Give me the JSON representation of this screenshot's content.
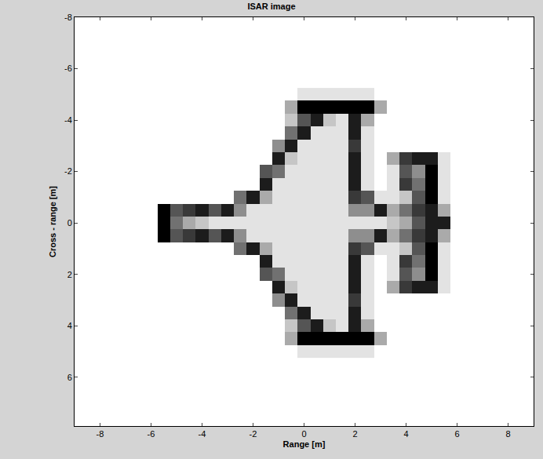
{
  "chart_data": {
    "type": "heatmap",
    "title": "ISAR image",
    "x_label": "Range [m]",
    "y_label": "Cross - range [m]",
    "xlim": [
      -9,
      9
    ],
    "xticks": [
      -8,
      -6,
      -4,
      -2,
      0,
      2,
      4,
      6,
      8
    ],
    "ylim": [
      -8,
      7.9
    ],
    "yticks": [
      -8,
      -6,
      -4,
      -2,
      0,
      2,
      4,
      6
    ],
    "x": [
      -6,
      -5.5,
      -5,
      -4.5,
      -4,
      -3.5,
      -3,
      -2.5,
      -2,
      -1.5,
      -1,
      -0.5,
      0,
      0.5,
      1,
      1.5,
      2,
      2.5,
      3,
      3.5,
      4,
      4.5,
      5,
      5.5,
      6
    ],
    "y": [
      -5,
      -4.5,
      -4,
      -3.5,
      -3,
      -2.5,
      -2,
      -1.5,
      -1,
      -0.5,
      0,
      0.5,
      1,
      1.5,
      2,
      2.5,
      3,
      3.5,
      4,
      4.5,
      5
    ],
    "zlim": [
      0,
      9
    ],
    "cells": [
      [
        0,
        0,
        0,
        0,
        0,
        0,
        0,
        0,
        0,
        0,
        0,
        0,
        1,
        1,
        1,
        1,
        1,
        1,
        0,
        0,
        0,
        0,
        0,
        0,
        0
      ],
      [
        0,
        0,
        0,
        0,
        0,
        0,
        0,
        0,
        0,
        0,
        0,
        3,
        9,
        9,
        9,
        9,
        9,
        9,
        3,
        0,
        0,
        0,
        0,
        0,
        0
      ],
      [
        0,
        0,
        0,
        0,
        0,
        0,
        0,
        0,
        0,
        0,
        0,
        2,
        6,
        8,
        2,
        1,
        8,
        3,
        0,
        0,
        0,
        0,
        0,
        0,
        0
      ],
      [
        0,
        0,
        0,
        0,
        0,
        0,
        0,
        0,
        0,
        0,
        0,
        5,
        8,
        1,
        1,
        1,
        8,
        1,
        0,
        0,
        0,
        0,
        0,
        0,
        0
      ],
      [
        0,
        0,
        0,
        0,
        0,
        0,
        0,
        0,
        0,
        0,
        4,
        8,
        1,
        1,
        1,
        1,
        7,
        1,
        0,
        0,
        0,
        0,
        0,
        0,
        0
      ],
      [
        0,
        0,
        0,
        0,
        0,
        0,
        0,
        0,
        0,
        0,
        8,
        2,
        1,
        1,
        1,
        1,
        8,
        1,
        0,
        3,
        7,
        8,
        8,
        1,
        0
      ],
      [
        0,
        0,
        0,
        0,
        0,
        0,
        0,
        0,
        0,
        6,
        5,
        1,
        1,
        1,
        1,
        1,
        8,
        1,
        0,
        1,
        6,
        4,
        9,
        1,
        0
      ],
      [
        0,
        0,
        0,
        0,
        0,
        0,
        0,
        0,
        0,
        8,
        1,
        1,
        1,
        1,
        1,
        1,
        8,
        1,
        0,
        1,
        7,
        5,
        9,
        1,
        0
      ],
      [
        0,
        0,
        0,
        0,
        0,
        0,
        0,
        5,
        8,
        3,
        1,
        1,
        1,
        1,
        1,
        1,
        7,
        6,
        1,
        1,
        2,
        6,
        9,
        1,
        0
      ],
      [
        0,
        9,
        6,
        7,
        8,
        6,
        8,
        4,
        1,
        1,
        1,
        1,
        1,
        1,
        1,
        1,
        4,
        4,
        8,
        3,
        5,
        7,
        8,
        3,
        0
      ],
      [
        0,
        9,
        5,
        3,
        2,
        1,
        1,
        1,
        1,
        1,
        1,
        1,
        1,
        1,
        1,
        1,
        1,
        1,
        1,
        2,
        3,
        6,
        8,
        8,
        0
      ],
      [
        0,
        9,
        6,
        7,
        8,
        6,
        8,
        4,
        1,
        1,
        1,
        1,
        1,
        1,
        1,
        1,
        4,
        4,
        8,
        3,
        5,
        7,
        8,
        3,
        0
      ],
      [
        0,
        0,
        0,
        0,
        0,
        0,
        0,
        5,
        8,
        3,
        1,
        1,
        1,
        1,
        1,
        1,
        7,
        6,
        1,
        1,
        2,
        6,
        9,
        1,
        0
      ],
      [
        0,
        0,
        0,
        0,
        0,
        0,
        0,
        0,
        0,
        8,
        1,
        1,
        1,
        1,
        1,
        1,
        8,
        1,
        0,
        1,
        7,
        5,
        9,
        1,
        0
      ],
      [
        0,
        0,
        0,
        0,
        0,
        0,
        0,
        0,
        0,
        6,
        5,
        1,
        1,
        1,
        1,
        1,
        8,
        1,
        0,
        1,
        6,
        4,
        9,
        1,
        0
      ],
      [
        0,
        0,
        0,
        0,
        0,
        0,
        0,
        0,
        0,
        0,
        8,
        2,
        1,
        1,
        1,
        1,
        8,
        1,
        0,
        3,
        7,
        8,
        8,
        1,
        0
      ],
      [
        0,
        0,
        0,
        0,
        0,
        0,
        0,
        0,
        0,
        0,
        4,
        8,
        1,
        1,
        1,
        1,
        7,
        1,
        0,
        0,
        0,
        0,
        0,
        0,
        0
      ],
      [
        0,
        0,
        0,
        0,
        0,
        0,
        0,
        0,
        0,
        0,
        0,
        5,
        8,
        1,
        1,
        1,
        8,
        1,
        0,
        0,
        0,
        0,
        0,
        0,
        0
      ],
      [
        0,
        0,
        0,
        0,
        0,
        0,
        0,
        0,
        0,
        0,
        0,
        2,
        6,
        8,
        2,
        1,
        8,
        3,
        0,
        0,
        0,
        0,
        0,
        0,
        0
      ],
      [
        0,
        0,
        0,
        0,
        0,
        0,
        0,
        0,
        0,
        0,
        0,
        3,
        9,
        9,
        9,
        9,
        9,
        9,
        3,
        0,
        0,
        0,
        0,
        0,
        0
      ],
      [
        0,
        0,
        0,
        0,
        0,
        0,
        0,
        0,
        0,
        0,
        0,
        0,
        1,
        1,
        1,
        1,
        1,
        1,
        0,
        0,
        0,
        0,
        0,
        0,
        0
      ]
    ]
  }
}
